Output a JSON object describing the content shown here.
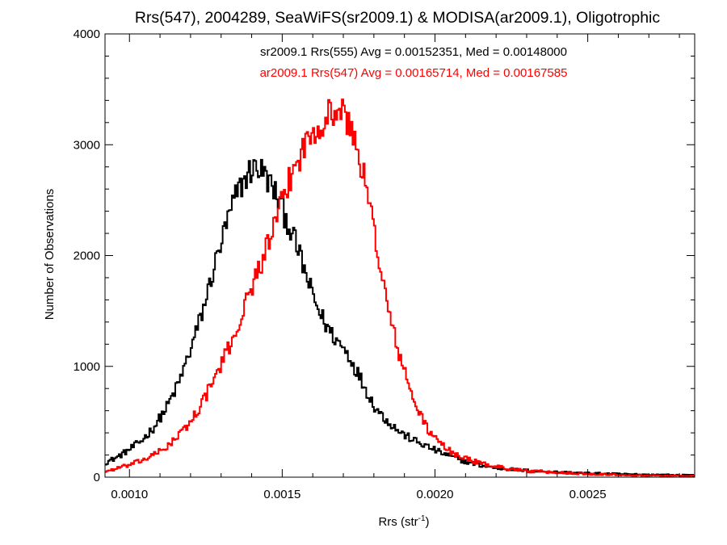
{
  "chart_data": {
    "type": "line",
    "step": true,
    "title": "Rrs(547), 2004289, SeaWiFS(sr2009.1) & MODISA(ar2009.1), Oligotrophic",
    "xlabel": "Rrs (str",
    "xlabel_sup": "-1",
    "xlabel_end": ")",
    "ylabel": "Number of Observations",
    "xlim": [
      0.00092,
      0.00285
    ],
    "ylim": [
      0,
      4000
    ],
    "x_ticks": [
      0.001,
      0.0015,
      0.002,
      0.0025
    ],
    "x_tick_labels": [
      "0.0010",
      "0.0015",
      "0.0020",
      "0.0025"
    ],
    "y_ticks": [
      0,
      1000,
      2000,
      3000,
      4000
    ],
    "y_tick_labels": [
      "0",
      "1000",
      "2000",
      "3000",
      "4000"
    ],
    "grid": false,
    "annotations": [
      {
        "text": "sr2009.1 Rrs(555) Avg = 0.00152351, Med = 0.00148000",
        "color": "#000000"
      },
      {
        "text": "ar2009.1 Rrs(547) Avg = 0.00165714, Med = 0.00167585",
        "color": "#ff0000"
      }
    ],
    "series": [
      {
        "color": "#000000",
        "bin_width": 5e-06,
        "x": [
          0.00092,
          0.00096,
          0.001,
          0.00104,
          0.00108,
          0.00112,
          0.00116,
          0.0012,
          0.00124,
          0.00128,
          0.00132,
          0.00135,
          0.00138,
          0.0014,
          0.00142,
          0.00144,
          0.00146,
          0.00148,
          0.0015,
          0.00152,
          0.00154,
          0.00156,
          0.00158,
          0.0016,
          0.00162,
          0.00164,
          0.00166,
          0.00168,
          0.0017,
          0.00172,
          0.00174,
          0.00176,
          0.00178,
          0.0018,
          0.00182,
          0.00184,
          0.00186,
          0.00188,
          0.0019,
          0.00194,
          0.00198,
          0.00202,
          0.00206,
          0.0021,
          0.00215,
          0.0022,
          0.00225,
          0.0023,
          0.0024,
          0.0025,
          0.0026,
          0.0027,
          0.0028,
          0.00285
        ],
        "y": [
          130,
          180,
          250,
          330,
          450,
          620,
          840,
          1150,
          1500,
          1920,
          2300,
          2550,
          2700,
          2780,
          2800,
          2740,
          2650,
          2550,
          2420,
          2290,
          2140,
          1980,
          1800,
          1640,
          1500,
          1390,
          1300,
          1230,
          1170,
          1090,
          980,
          870,
          760,
          650,
          580,
          520,
          470,
          420,
          380,
          320,
          270,
          220,
          180,
          140,
          105,
          85,
          70,
          60,
          45,
          35,
          28,
          22,
          18,
          15
        ]
      },
      {
        "color": "#ff0000",
        "bin_width": 5e-06,
        "x": [
          0.00092,
          0.00096,
          0.001,
          0.00104,
          0.00108,
          0.00112,
          0.00116,
          0.0012,
          0.00124,
          0.00128,
          0.00132,
          0.00136,
          0.0014,
          0.00144,
          0.00148,
          0.00152,
          0.00156,
          0.0016,
          0.00162,
          0.00164,
          0.00166,
          0.00168,
          0.0017,
          0.00172,
          0.00174,
          0.00176,
          0.00178,
          0.0018,
          0.00182,
          0.00184,
          0.00186,
          0.00188,
          0.0019,
          0.00192,
          0.00194,
          0.00196,
          0.00198,
          0.002,
          0.00204,
          0.00208,
          0.00212,
          0.00216,
          0.0022,
          0.00225,
          0.0023,
          0.0024,
          0.0025,
          0.0026,
          0.0027,
          0.0028,
          0.00285
        ],
        "y": [
          50,
          80,
          110,
          150,
          200,
          270,
          370,
          500,
          680,
          900,
          1130,
          1400,
          1720,
          2000,
          2300,
          2650,
          2920,
          3120,
          3190,
          3240,
          3290,
          3310,
          3280,
          3170,
          3020,
          2810,
          2530,
          2250,
          1930,
          1600,
          1360,
          1140,
          950,
          780,
          630,
          520,
          420,
          350,
          250,
          190,
          150,
          120,
          95,
          75,
          55,
          40,
          30,
          22,
          16,
          12,
          10
        ]
      }
    ]
  }
}
